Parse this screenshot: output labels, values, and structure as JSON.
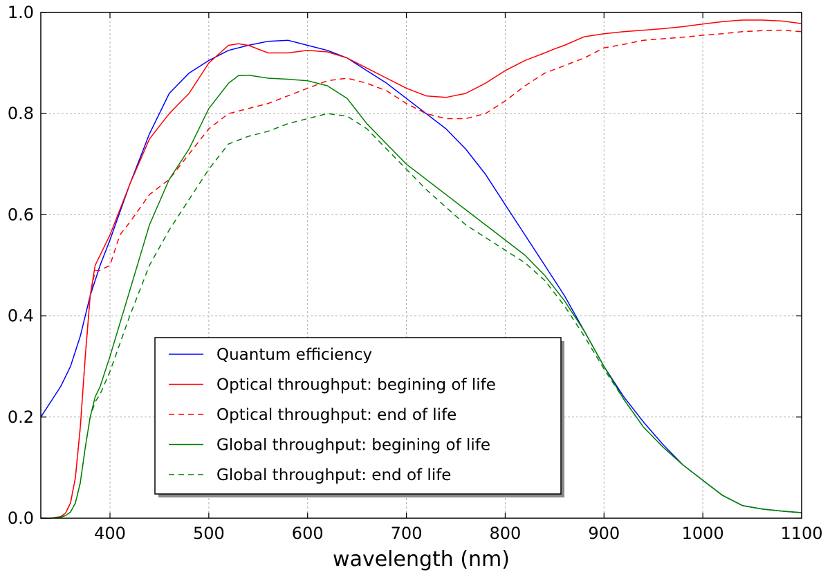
{
  "chart_data": {
    "type": "line",
    "title": "",
    "xlabel": "wavelength (nm)",
    "ylabel": "",
    "xlim": [
      330,
      1100
    ],
    "ylim": [
      0.0,
      1.0
    ],
    "xticks": [
      400,
      500,
      600,
      700,
      800,
      900,
      1000,
      1100
    ],
    "yticks": [
      0.0,
      0.2,
      0.4,
      0.6,
      0.8,
      1.0
    ],
    "xtick_labels": [
      "400",
      "500",
      "600",
      "700",
      "800",
      "900",
      "1000",
      "1100"
    ],
    "ytick_labels": [
      "0.0",
      "0.2",
      "0.4",
      "0.6",
      "0.8",
      "1.0"
    ],
    "grid": true,
    "legend_position": "lower-left",
    "series": [
      {
        "name": "Quantum efficiency",
        "color": "#0000ff",
        "style": "solid",
        "x": [
          330,
          340,
          350,
          360,
          370,
          380,
          390,
          400,
          420,
          440,
          460,
          480,
          500,
          520,
          540,
          560,
          580,
          600,
          620,
          640,
          660,
          680,
          700,
          720,
          740,
          760,
          780,
          800,
          820,
          840,
          860,
          880,
          900,
          920,
          940,
          960,
          980,
          1000,
          1020,
          1040,
          1060,
          1080,
          1100
        ],
        "y": [
          0.2,
          0.23,
          0.26,
          0.3,
          0.36,
          0.44,
          0.5,
          0.55,
          0.66,
          0.76,
          0.84,
          0.88,
          0.905,
          0.925,
          0.935,
          0.943,
          0.945,
          0.935,
          0.925,
          0.91,
          0.885,
          0.86,
          0.83,
          0.8,
          0.77,
          0.73,
          0.68,
          0.62,
          0.56,
          0.5,
          0.44,
          0.37,
          0.3,
          0.24,
          0.19,
          0.145,
          0.105,
          0.075,
          0.045,
          0.025,
          0.018,
          0.014,
          0.011
        ]
      },
      {
        "name": "Optical throughput: begining of life",
        "color": "#ff0000",
        "style": "solid",
        "x": [
          330,
          340,
          350,
          355,
          360,
          365,
          370,
          375,
          380,
          385,
          390,
          400,
          420,
          440,
          460,
          480,
          500,
          520,
          530,
          540,
          560,
          580,
          600,
          620,
          640,
          660,
          680,
          700,
          720,
          740,
          760,
          780,
          800,
          820,
          840,
          850,
          860,
          880,
          900,
          920,
          940,
          960,
          980,
          1000,
          1020,
          1040,
          1060,
          1080,
          1100
        ],
        "y": [
          0.0,
          0.0,
          0.003,
          0.01,
          0.03,
          0.08,
          0.18,
          0.32,
          0.44,
          0.5,
          0.52,
          0.56,
          0.66,
          0.75,
          0.8,
          0.84,
          0.9,
          0.935,
          0.938,
          0.935,
          0.92,
          0.92,
          0.925,
          0.922,
          0.91,
          0.89,
          0.87,
          0.85,
          0.835,
          0.832,
          0.84,
          0.86,
          0.885,
          0.905,
          0.92,
          0.928,
          0.935,
          0.952,
          0.958,
          0.962,
          0.965,
          0.968,
          0.972,
          0.977,
          0.982,
          0.985,
          0.985,
          0.983,
          0.978
        ]
      },
      {
        "name": "Optical throughput: end of life",
        "color": "#ff0000",
        "style": "dashed",
        "x": [
          330,
          340,
          350,
          355,
          360,
          365,
          370,
          375,
          380,
          385,
          390,
          400,
          410,
          420,
          440,
          460,
          480,
          500,
          520,
          540,
          560,
          580,
          600,
          620,
          640,
          660,
          680,
          700,
          720,
          740,
          760,
          780,
          800,
          820,
          840,
          860,
          880,
          900,
          920,
          940,
          960,
          980,
          1000,
          1020,
          1040,
          1060,
          1080,
          1100
        ],
        "y": [
          0.0,
          0.0,
          0.003,
          0.01,
          0.03,
          0.08,
          0.18,
          0.32,
          0.44,
          0.49,
          0.49,
          0.5,
          0.56,
          0.585,
          0.64,
          0.67,
          0.72,
          0.77,
          0.8,
          0.81,
          0.82,
          0.835,
          0.85,
          0.865,
          0.87,
          0.86,
          0.845,
          0.82,
          0.8,
          0.79,
          0.79,
          0.8,
          0.825,
          0.855,
          0.88,
          0.895,
          0.91,
          0.93,
          0.937,
          0.945,
          0.948,
          0.951,
          0.955,
          0.958,
          0.962,
          0.964,
          0.965,
          0.962
        ]
      },
      {
        "name": "Global throughput: begining of life",
        "color": "#008000",
        "style": "solid",
        "x": [
          330,
          340,
          350,
          355,
          360,
          365,
          370,
          375,
          380,
          385,
          390,
          400,
          420,
          440,
          460,
          480,
          500,
          520,
          530,
          540,
          560,
          580,
          600,
          620,
          640,
          660,
          680,
          700,
          720,
          740,
          760,
          780,
          800,
          820,
          840,
          860,
          880,
          900,
          920,
          940,
          960,
          980,
          1000,
          1020,
          1040,
          1060,
          1080,
          1100
        ],
        "y": [
          0.0,
          0.0,
          0.002,
          0.005,
          0.012,
          0.03,
          0.07,
          0.14,
          0.2,
          0.24,
          0.26,
          0.32,
          0.45,
          0.58,
          0.67,
          0.73,
          0.81,
          0.86,
          0.875,
          0.876,
          0.87,
          0.868,
          0.865,
          0.855,
          0.83,
          0.78,
          0.74,
          0.7,
          0.67,
          0.64,
          0.61,
          0.58,
          0.55,
          0.52,
          0.48,
          0.43,
          0.37,
          0.3,
          0.235,
          0.18,
          0.14,
          0.105,
          0.075,
          0.045,
          0.025,
          0.018,
          0.014,
          0.011
        ]
      },
      {
        "name": "Global throughput: end of life",
        "color": "#008000",
        "style": "dashed",
        "x": [
          330,
          340,
          350,
          355,
          360,
          365,
          370,
          375,
          380,
          385,
          390,
          400,
          420,
          440,
          460,
          480,
          500,
          520,
          540,
          560,
          580,
          600,
          620,
          640,
          660,
          680,
          700,
          720,
          740,
          760,
          780,
          800,
          820,
          840,
          860,
          880,
          900,
          920,
          940,
          960,
          980,
          1000,
          1020,
          1040,
          1060,
          1080,
          1100
        ],
        "y": [
          0.0,
          0.0,
          0.002,
          0.005,
          0.012,
          0.03,
          0.07,
          0.14,
          0.2,
          0.23,
          0.245,
          0.29,
          0.4,
          0.5,
          0.57,
          0.63,
          0.69,
          0.74,
          0.755,
          0.765,
          0.78,
          0.79,
          0.8,
          0.795,
          0.77,
          0.73,
          0.69,
          0.65,
          0.615,
          0.58,
          0.555,
          0.53,
          0.505,
          0.47,
          0.42,
          0.36,
          0.295,
          0.235,
          0.18,
          0.14,
          0.105,
          0.075,
          0.045,
          0.025,
          0.018,
          0.014,
          0.011
        ]
      }
    ]
  }
}
